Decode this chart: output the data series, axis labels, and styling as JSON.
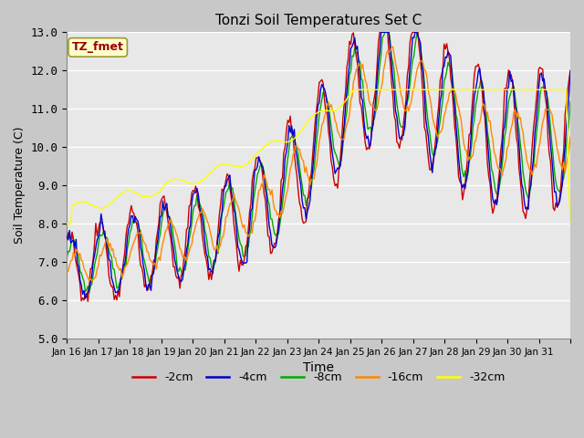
{
  "title": "Tonzi Soil Temperatures Set C",
  "xlabel": "Time",
  "ylabel": "Soil Temperature (C)",
  "annotation": "TZ_fmet",
  "ylim": [
    5.0,
    13.0
  ],
  "yticks": [
    5.0,
    6.0,
    7.0,
    8.0,
    9.0,
    10.0,
    11.0,
    12.0,
    13.0
  ],
  "xtick_labels": [
    "Jan 16",
    "Jan 17",
    "Jan 18",
    "Jan 19",
    "Jan 20",
    "Jan 21",
    "Jan 22",
    "Jan 23",
    "Jan 24",
    "Jan 25",
    "Jan 26",
    "Jan 27",
    "Jan 28",
    "Jan 29",
    "Jan 30",
    "Jan 31"
  ],
  "colors": {
    "-2cm": "#cc0000",
    "-4cm": "#0000cc",
    "-8cm": "#00aa00",
    "-16cm": "#ff8800",
    "-32cm": "#ffff00"
  },
  "legend_labels": [
    "-2cm",
    "-4cm",
    "-8cm",
    "-16cm",
    "-32cm"
  ],
  "fig_bg": "#c8c8c8",
  "axes_bg": "#e8e8e8",
  "annotation_bg": "#ffffcc",
  "annotation_text_color": "#990000",
  "annotation_edge_color": "#999933"
}
